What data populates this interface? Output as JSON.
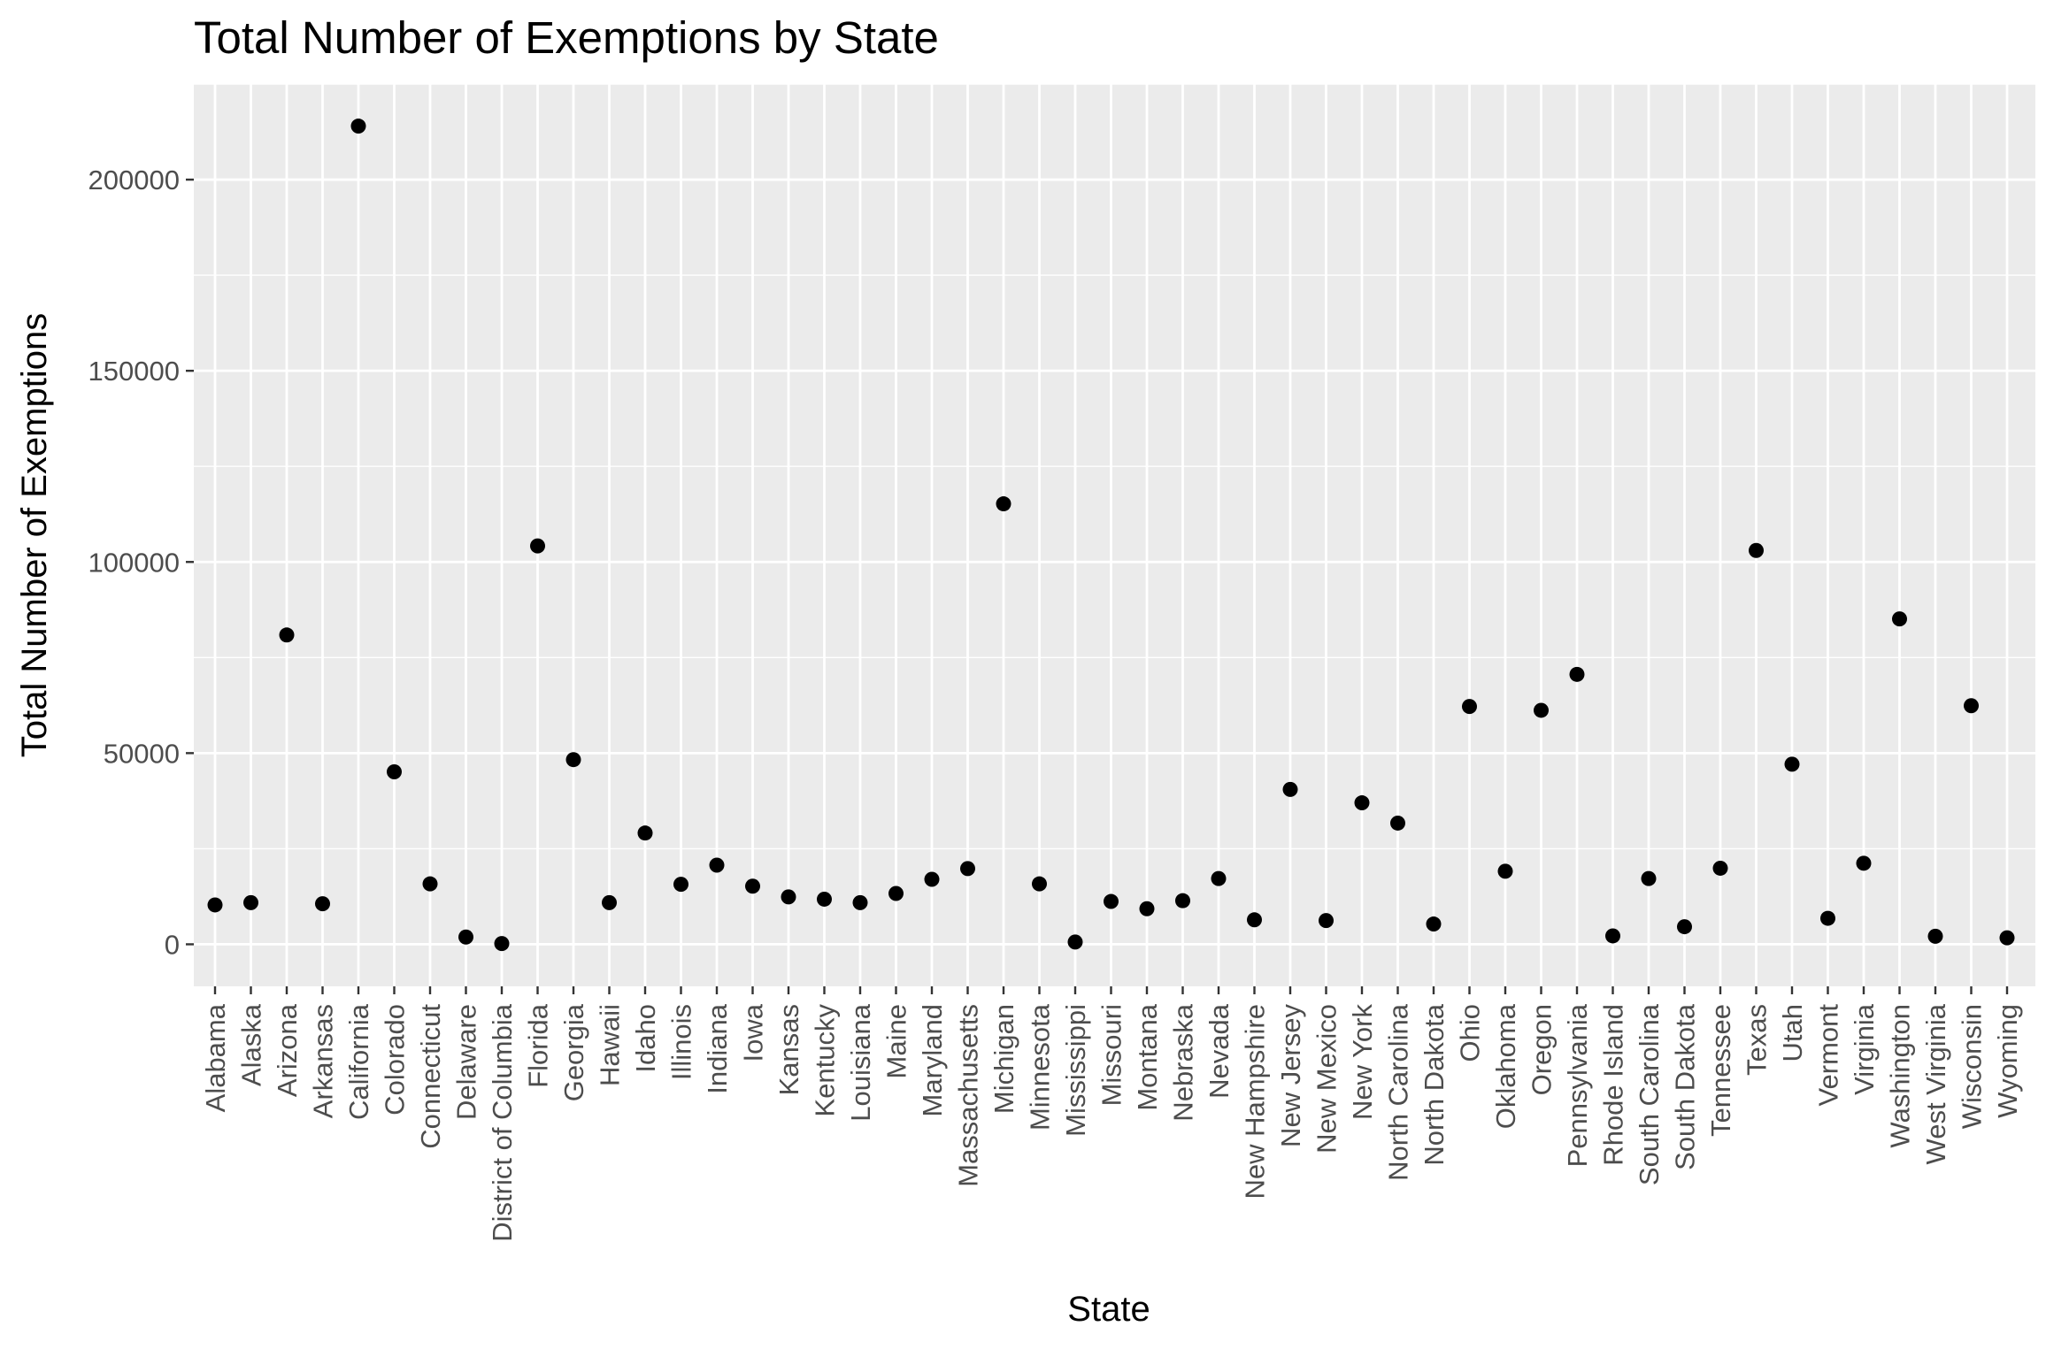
{
  "chart_data": {
    "type": "scatter",
    "title": "Total Number of Exemptions by State",
    "xlabel": "State",
    "ylabel": "Total Number of Exemptions",
    "ylim": [
      -11000,
      225000
    ],
    "y_ticks": [
      0,
      50000,
      100000,
      150000,
      200000
    ],
    "y_tick_labels": [
      "0",
      "50000",
      "100000",
      "150000",
      "200000"
    ],
    "grid": true,
    "legend": "none",
    "colors": {
      "panel": "#ebebeb",
      "grid": "#ffffff",
      "point": "#000000",
      "tick_text": "#4d4d4d",
      "tick_mark": "#333333"
    },
    "categories": [
      "Alabama",
      "Alaska",
      "Arizona",
      "Arkansas",
      "California",
      "Colorado",
      "Connecticut",
      "Delaware",
      "District of Columbia",
      "Florida",
      "Georgia",
      "Hawaii",
      "Idaho",
      "Illinois",
      "Indiana",
      "Iowa",
      "Kansas",
      "Kentucky",
      "Louisiana",
      "Maine",
      "Maryland",
      "Massachusetts",
      "Michigan",
      "Minnesota",
      "Mississippi",
      "Missouri",
      "Montana",
      "Nebraska",
      "Nevada",
      "New Hampshire",
      "New Jersey",
      "New Mexico",
      "New York",
      "North Carolina",
      "North Dakota",
      "Ohio",
      "Oklahoma",
      "Oregon",
      "Pennsylvania",
      "Rhode Island",
      "South Carolina",
      "South Dakota",
      "Tennessee",
      "Texas",
      "Utah",
      "Vermont",
      "Virginia",
      "Washington",
      "West Virginia",
      "Wisconsin",
      "Wyoming"
    ],
    "values": [
      10300,
      10900,
      80900,
      10600,
      214000,
      45100,
      15800,
      1900,
      200,
      104200,
      48300,
      10900,
      29100,
      15700,
      20700,
      15200,
      12400,
      11800,
      10900,
      13300,
      17000,
      19800,
      115200,
      15800,
      600,
      11200,
      9300,
      11400,
      17200,
      6400,
      40500,
      6200,
      37000,
      31700,
      5300,
      62200,
      19100,
      61200,
      70600,
      2200,
      17200,
      4600,
      19900,
      103000,
      47100,
      6800,
      21200,
      85100,
      2100,
      62400,
      1700
    ]
  }
}
